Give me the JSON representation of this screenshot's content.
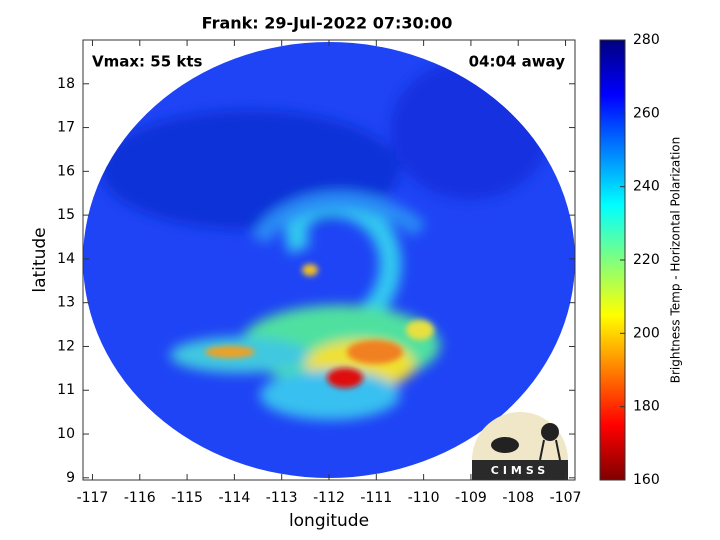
{
  "chart_data": {
    "type": "swath-map",
    "title": "Frank: 29-Jul-2022 07:30:00",
    "annotations": {
      "left": "Vmax: 55 kts",
      "right": "04:04 away"
    },
    "xlabel": "longitude",
    "ylabel": "latitude",
    "xlim": [
      -117.2,
      -106.8
    ],
    "ylim": [
      8.95,
      19.0
    ],
    "xticks": [
      -117,
      -116,
      -115,
      -114,
      -113,
      -112,
      -111,
      -110,
      -109,
      -108,
      -107
    ],
    "yticks": [
      9,
      10,
      11,
      12,
      13,
      14,
      15,
      16,
      17,
      18
    ],
    "colorbar": {
      "label": "Brightness Temp - Horizontal Polarization",
      "lim": [
        160,
        280
      ],
      "ticks": [
        160,
        180,
        200,
        220,
        240,
        260,
        280
      ],
      "colormap": "jet_r"
    },
    "logo": "CIMSS"
  }
}
